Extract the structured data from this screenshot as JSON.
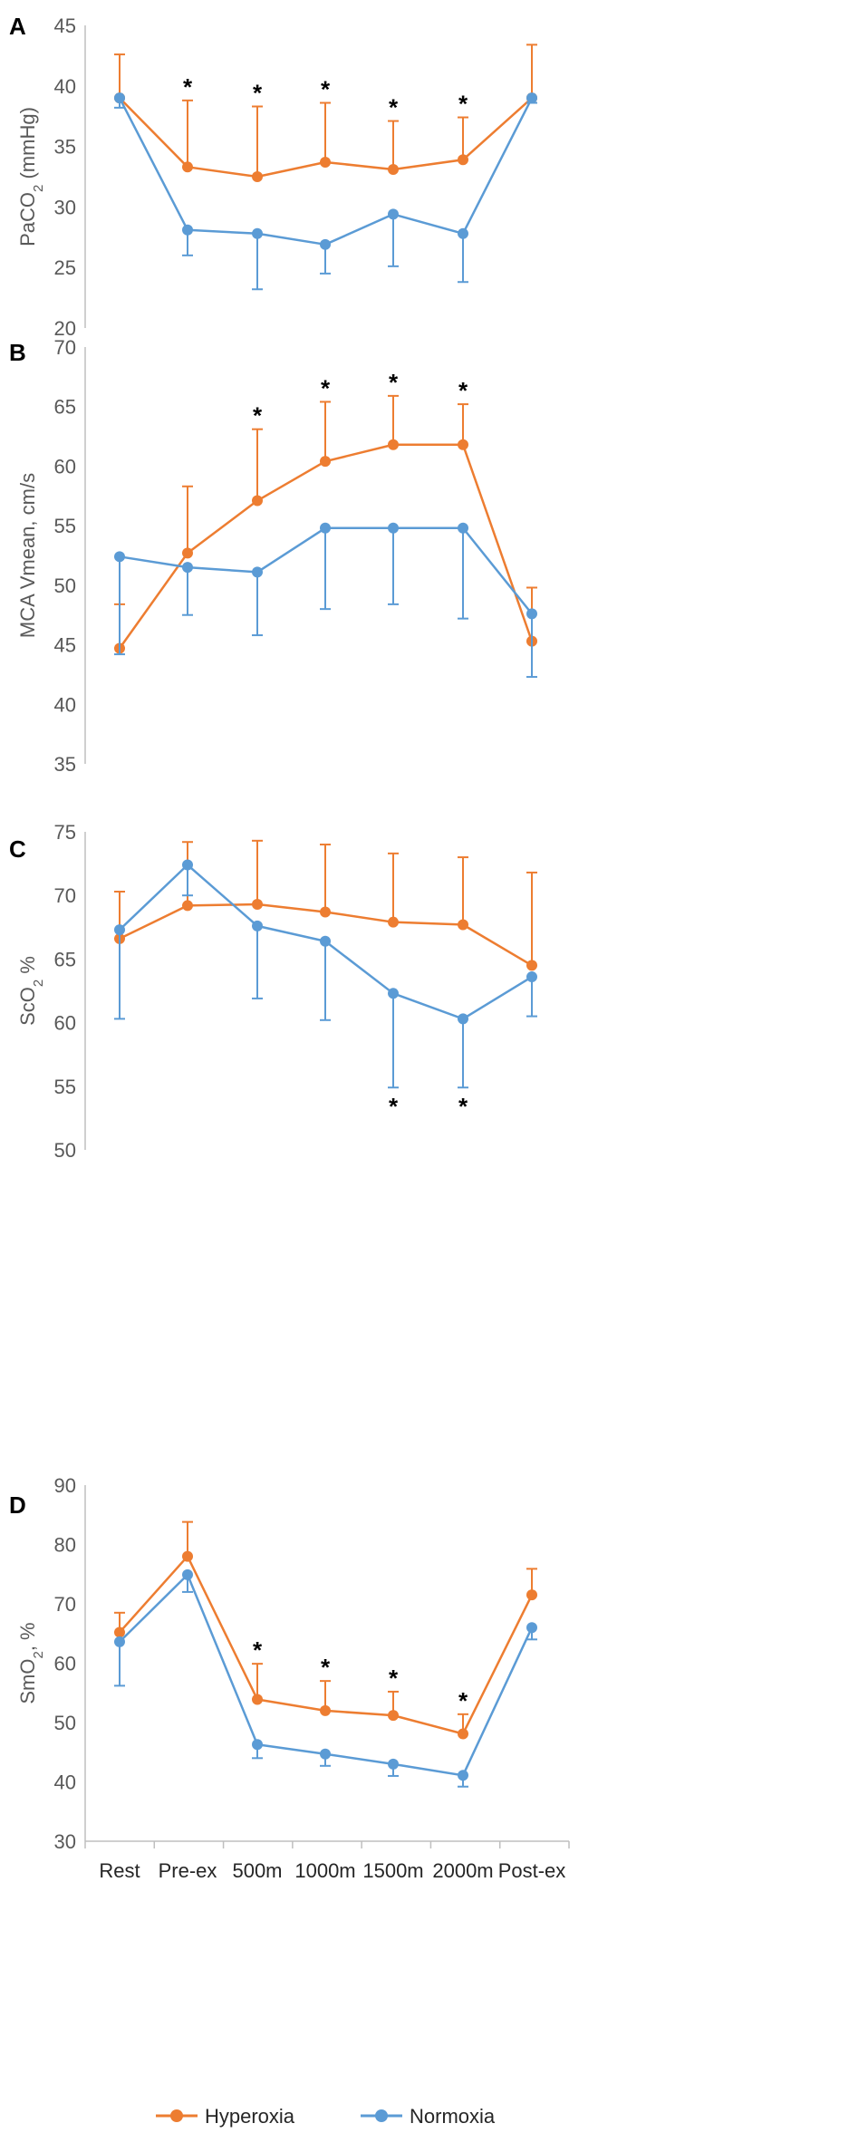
{
  "colors": {
    "hyperoxia": "#ED7D31",
    "normoxia": "#5B9BD5",
    "axis": "#BFBFBF"
  },
  "legend": {
    "hyperoxia": "Hyperoxia",
    "normoxia": "Normoxia"
  },
  "chart_data": [
    {
      "panel": "A",
      "type": "line",
      "ylabel": "PaCO",
      "ylabel_sub": "2",
      "ylabel_suffix": " (mmHg)",
      "ylim": [
        20,
        45
      ],
      "yticks": [
        20,
        25,
        30,
        35,
        40,
        45
      ],
      "categories": [
        "Rest",
        "Pre-ex",
        "500m",
        "1000m",
        "1500m",
        "2000m",
        "Post-ex"
      ],
      "series": [
        {
          "name": "Hyperoxia",
          "values": [
            39.0,
            33.3,
            32.5,
            33.7,
            33.1,
            33.9,
            39.0
          ],
          "err_up": [
            3.6,
            5.5,
            5.8,
            4.9,
            4.0,
            3.5,
            4.4
          ]
        },
        {
          "name": "Normoxia",
          "values": [
            39.0,
            28.1,
            27.8,
            26.9,
            29.4,
            27.8,
            39.0
          ],
          "err_down": [
            0.8,
            2.1,
            4.6,
            2.4,
            4.3,
            4.0,
            0.4
          ]
        }
      ],
      "annotations": [
        {
          "text": "*",
          "index": 1,
          "series": "Hyperoxia"
        },
        {
          "text": "*",
          "index": 2,
          "series": "Hyperoxia"
        },
        {
          "text": "*",
          "index": 3,
          "series": "Hyperoxia"
        },
        {
          "text": "*",
          "index": 4,
          "series": "Hyperoxia"
        },
        {
          "text": "*",
          "index": 5,
          "series": "Hyperoxia"
        }
      ]
    },
    {
      "panel": "B",
      "type": "line",
      "ylabel": "MCA Vmean, cm/s",
      "ylabel_sub": "",
      "ylabel_suffix": "",
      "ylim": [
        35,
        70
      ],
      "yticks": [
        35,
        40,
        45,
        50,
        55,
        60,
        65,
        70
      ],
      "categories": [
        "Rest",
        "Pre-ex",
        "500m",
        "1000m",
        "1500m",
        "2000m",
        "Post-ex"
      ],
      "series": [
        {
          "name": "Hyperoxia",
          "values": [
            44.7,
            52.7,
            57.1,
            60.4,
            61.8,
            61.8,
            45.3
          ],
          "err_up": [
            3.7,
            5.6,
            6.0,
            5.0,
            4.1,
            3.4,
            4.5
          ]
        },
        {
          "name": "Normoxia",
          "values": [
            52.4,
            51.5,
            51.1,
            54.8,
            54.8,
            54.8,
            47.6
          ],
          "err_down": [
            8.2,
            4.0,
            5.3,
            6.8,
            6.4,
            7.6,
            5.3
          ]
        }
      ],
      "annotations": [
        {
          "text": "*",
          "index": 2,
          "series": "Hyperoxia"
        },
        {
          "text": "*",
          "index": 3,
          "series": "Hyperoxia"
        },
        {
          "text": "*",
          "index": 4,
          "series": "Hyperoxia"
        },
        {
          "text": "*",
          "index": 5,
          "series": "Hyperoxia"
        }
      ]
    },
    {
      "panel": "C",
      "type": "line",
      "ylabel": "ScO",
      "ylabel_sub": "2",
      "ylabel_suffix": " %",
      "ylim": [
        50,
        75
      ],
      "yticks": [
        50,
        55,
        60,
        65,
        70,
        75
      ],
      "categories": [
        "Rest",
        "Pre-ex",
        "500m",
        "1000m",
        "1500m",
        "2000m",
        "Post-ex"
      ],
      "series": [
        {
          "name": "Hyperoxia",
          "values": [
            66.6,
            69.2,
            69.3,
            68.7,
            67.9,
            67.7,
            64.5
          ],
          "err_up": [
            3.7,
            5.0,
            5.0,
            5.3,
            5.4,
            5.3,
            7.3
          ]
        },
        {
          "name": "Normoxia",
          "values": [
            67.3,
            72.4,
            67.6,
            66.4,
            62.3,
            60.3,
            63.6
          ],
          "err_down": [
            7.0,
            2.4,
            5.7,
            6.2,
            7.4,
            5.4,
            3.1
          ]
        }
      ],
      "annotations": [
        {
          "text": "*",
          "index": 4,
          "series": "Normoxia"
        },
        {
          "text": "*",
          "index": 5,
          "series": "Normoxia"
        }
      ]
    },
    {
      "panel": "D",
      "type": "line",
      "ylabel": "SmO",
      "ylabel_sub": "2",
      "ylabel_suffix": ", %",
      "ylim": [
        30,
        90
      ],
      "yticks": [
        30,
        40,
        50,
        60,
        70,
        80,
        90
      ],
      "categories": [
        "Rest",
        "Pre-ex",
        "500m",
        "1000m",
        "1500m",
        "2000m",
        "Post-ex"
      ],
      "series": [
        {
          "name": "Hyperoxia",
          "values": [
            65.2,
            78.0,
            53.9,
            52.0,
            51.2,
            48.1,
            71.5
          ],
          "err_up": [
            3.3,
            5.8,
            6.0,
            5.0,
            4.0,
            3.3,
            4.4
          ]
        },
        {
          "name": "Normoxia",
          "values": [
            63.6,
            74.9,
            46.3,
            44.7,
            43.0,
            41.1,
            66.0
          ],
          "err_down": [
            7.4,
            2.9,
            2.3,
            2.0,
            2.0,
            1.9,
            2.0
          ]
        }
      ],
      "annotations": [
        {
          "text": "*",
          "index": 2,
          "series": "Hyperoxia"
        },
        {
          "text": "*",
          "index": 3,
          "series": "Hyperoxia"
        },
        {
          "text": "*",
          "index": 4,
          "series": "Hyperoxia"
        },
        {
          "text": "*",
          "index": 5,
          "series": "Hyperoxia"
        }
      ]
    }
  ]
}
